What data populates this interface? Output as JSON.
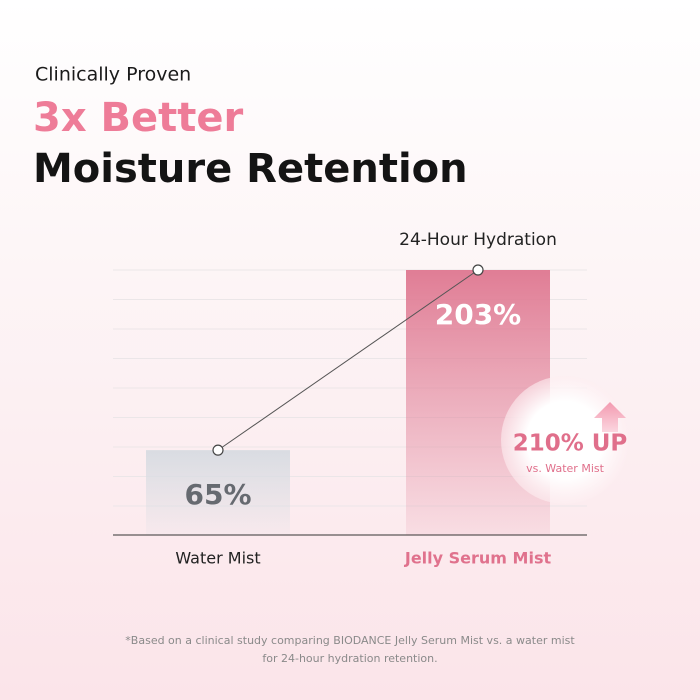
{
  "chart_data": {
    "type": "bar",
    "pretitle": "Clinically Proven",
    "title_lines": [
      "3x Better",
      "Moisture Retention"
    ],
    "annotation": "24-Hour Hydration",
    "categories": [
      "Water Mist",
      "Jelly Serum Mist"
    ],
    "values": [
      65,
      203
    ],
    "value_labels": [
      "65%",
      "203%"
    ],
    "colors": [
      "#d9dce2",
      "#e07d95"
    ],
    "ylim": [
      0,
      203
    ],
    "badge": {
      "label": "210% UP",
      "note": "vs. Water Mist"
    },
    "footnote": [
      "*Based on a clinical study comparing BIODANCE Jelly Serum Mist vs. a water mist",
      "for 24-hour hydration retention."
    ]
  }
}
